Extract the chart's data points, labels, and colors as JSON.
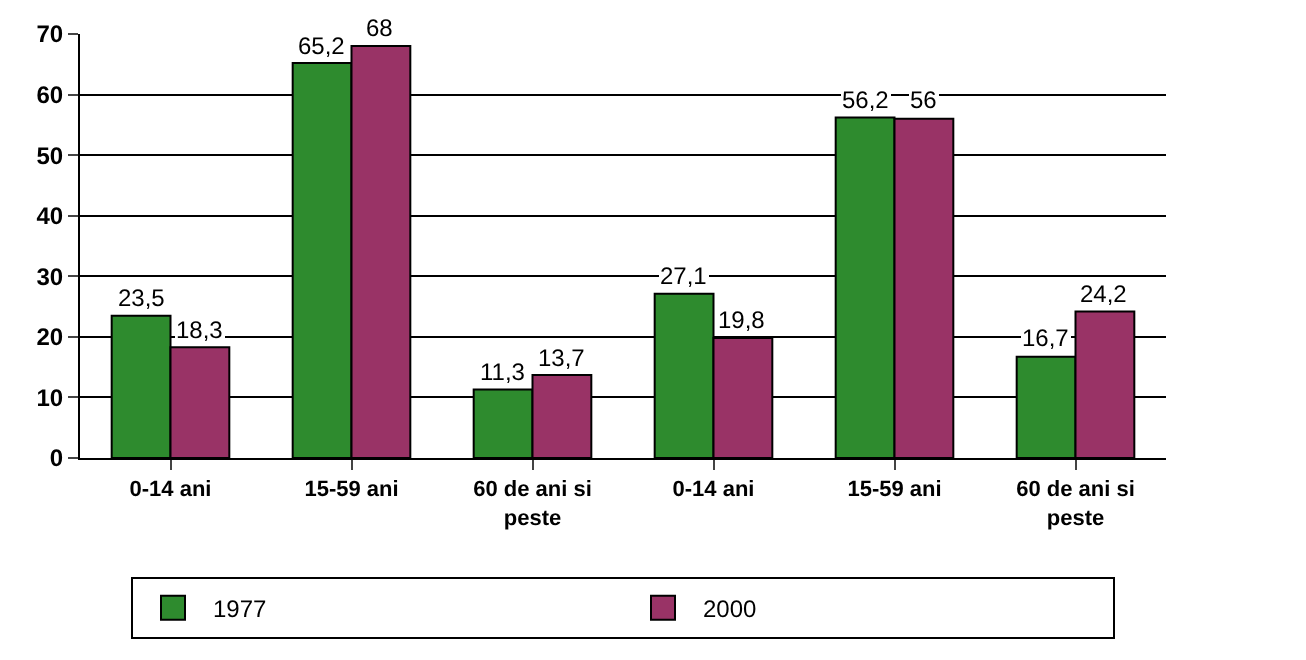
{
  "chart_data": {
    "type": "bar",
    "categories": [
      "0-14 ani",
      "15-59 ani",
      "60 de ani si peste",
      "0-14 ani",
      "15-59 ani",
      "60 de ani si peste"
    ],
    "series": [
      {
        "name": "1977",
        "color": "#2e8b2e",
        "values": [
          23.5,
          65.2,
          11.3,
          27.1,
          56.2,
          16.7
        ],
        "value_labels": [
          "23,5",
          "65,2",
          "11,3",
          "27,1",
          "56,2",
          "16,7"
        ]
      },
      {
        "name": "2000",
        "color": "#993366",
        "values": [
          18.3,
          68,
          13.7,
          19.8,
          56,
          24.2
        ],
        "value_labels": [
          "18,3",
          "68",
          "13,7",
          "19,8",
          "56",
          "24,2"
        ]
      }
    ],
    "ylim": [
      0,
      70
    ],
    "yticks": [
      0,
      10,
      20,
      30,
      40,
      50,
      60,
      70
    ],
    "grid": "y",
    "legend": "bottom"
  }
}
